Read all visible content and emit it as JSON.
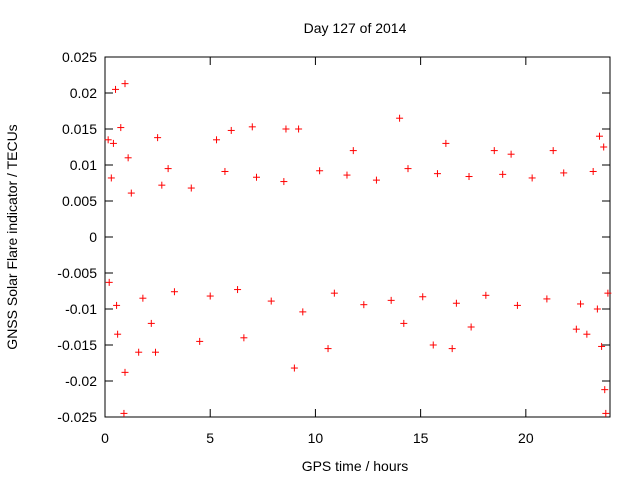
{
  "chart_data": {
    "type": "scatter",
    "title": "Day 127 of 2014",
    "xlabel": "GPS time / hours",
    "ylabel": "GNSS Solar Flare indicator / TECUs",
    "xlim": [
      0,
      24
    ],
    "ylim": [
      -0.025,
      0.025
    ],
    "xticks": [
      "0",
      "5",
      "10",
      "15",
      "20"
    ],
    "xtick_values": [
      0,
      5,
      10,
      15,
      20
    ],
    "yticks": [
      "-0.025",
      "-0.02",
      "-0.015",
      "-0.01",
      "-0.005",
      "0",
      "0.005",
      "0.01",
      "0.015",
      "0.02",
      "0.025"
    ],
    "ytick_values": [
      -0.025,
      -0.02,
      -0.015,
      -0.01,
      -0.005,
      0,
      0.005,
      0.01,
      0.015,
      0.02,
      0.025
    ],
    "grid": false,
    "marker": "+",
    "color": "#ff0000",
    "series": [
      {
        "points": [
          [
            0.15,
            0.0135
          ],
          [
            0.4,
            0.013
          ],
          [
            0.5,
            0.0205
          ],
          [
            0.75,
            0.0152
          ],
          [
            0.95,
            0.0213
          ],
          [
            1.1,
            0.011
          ],
          [
            0.9,
            -0.0245
          ],
          [
            0.95,
            -0.0188
          ],
          [
            0.6,
            -0.0135
          ],
          [
            1.6,
            -0.016
          ],
          [
            2.4,
            -0.016
          ],
          [
            2.2,
            -0.012
          ],
          [
            2.5,
            0.0138
          ],
          [
            3.0,
            0.0095
          ],
          [
            4.5,
            -0.0145
          ],
          [
            5.3,
            0.0135
          ],
          [
            6.0,
            0.0148
          ],
          [
            6.6,
            -0.014
          ],
          [
            7.0,
            0.0153
          ],
          [
            8.6,
            0.015
          ],
          [
            9.0,
            -0.0182
          ],
          [
            9.2,
            0.015
          ],
          [
            10.6,
            -0.0155
          ],
          [
            11.8,
            0.012
          ],
          [
            14.0,
            0.0165
          ],
          [
            14.2,
            -0.012
          ],
          [
            15.6,
            -0.015
          ],
          [
            16.2,
            0.013
          ],
          [
            16.5,
            -0.0155
          ],
          [
            17.4,
            -0.0125
          ],
          [
            18.5,
            0.012
          ],
          [
            19.3,
            0.0115
          ],
          [
            21.3,
            0.012
          ],
          [
            22.4,
            -0.0128
          ],
          [
            22.9,
            -0.0135
          ],
          [
            23.4,
            -0.01
          ],
          [
            23.5,
            0.014
          ],
          [
            23.6,
            -0.0152
          ],
          [
            23.7,
            0.0125
          ],
          [
            23.8,
            -0.0245
          ],
          [
            23.75,
            -0.0212
          ],
          [
            0.2,
            -0.0063
          ],
          [
            0.3,
            0.0082
          ],
          [
            0.55,
            -0.0095
          ],
          [
            1.25,
            0.0061
          ],
          [
            1.8,
            -0.0085
          ],
          [
            2.7,
            0.0072
          ],
          [
            3.3,
            -0.0076
          ],
          [
            4.1,
            0.0068
          ],
          [
            5.0,
            -0.0082
          ],
          [
            5.7,
            0.0091
          ],
          [
            6.3,
            -0.0073
          ],
          [
            7.2,
            0.0083
          ],
          [
            7.9,
            -0.0089
          ],
          [
            8.5,
            0.0077
          ],
          [
            9.4,
            -0.0104
          ],
          [
            10.2,
            0.0092
          ],
          [
            10.9,
            -0.0078
          ],
          [
            11.5,
            0.0086
          ],
          [
            12.3,
            -0.0094
          ],
          [
            12.9,
            0.0079
          ],
          [
            13.6,
            -0.0088
          ],
          [
            14.4,
            0.0095
          ],
          [
            15.1,
            -0.0083
          ],
          [
            15.8,
            0.0088
          ],
          [
            16.7,
            -0.0092
          ],
          [
            17.3,
            0.0084
          ],
          [
            18.1,
            -0.0081
          ],
          [
            18.9,
            0.0087
          ],
          [
            19.6,
            -0.0095
          ],
          [
            20.3,
            0.0082
          ],
          [
            21.0,
            -0.0086
          ],
          [
            21.8,
            0.0089
          ],
          [
            22.6,
            -0.0093
          ],
          [
            23.2,
            0.0091
          ],
          [
            23.9,
            -0.0078
          ]
        ]
      }
    ]
  }
}
